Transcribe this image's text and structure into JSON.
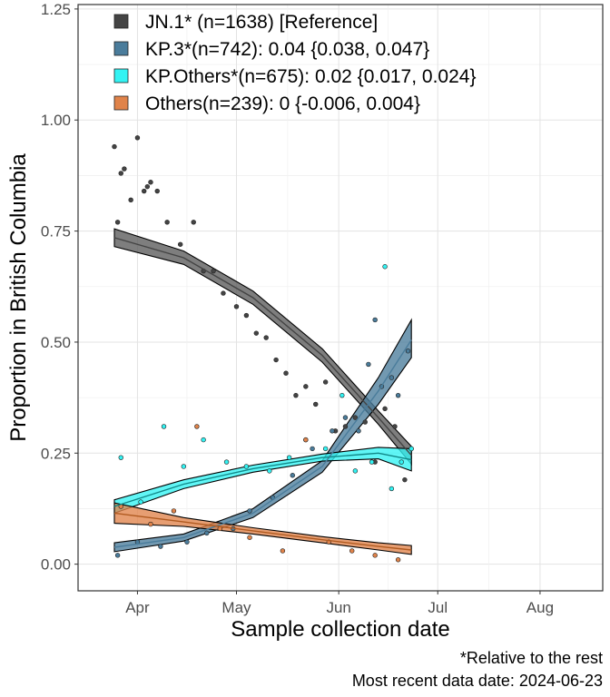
{
  "chart_data": {
    "type": "scatter",
    "xlabel": "Sample collection date",
    "ylabel": "Proportion in British Columbia",
    "x_range": [
      "2024-03-14",
      "2024-08-20"
    ],
    "ylim": [
      -0.06,
      1.26
    ],
    "x_ticks": [
      {
        "date": "2024-04-01",
        "label": "Apr"
      },
      {
        "date": "2024-05-01",
        "label": "May"
      },
      {
        "date": "2024-06-01",
        "label": "Jun"
      },
      {
        "date": "2024-07-01",
        "label": "Jul"
      },
      {
        "date": "2024-08-01",
        "label": "Aug"
      }
    ],
    "y_ticks": [
      {
        "value": 0,
        "label": "0.00"
      },
      {
        "value": 0.25,
        "label": "0.25"
      },
      {
        "value": 0.5,
        "label": "0.50"
      },
      {
        "value": 0.75,
        "label": "0.75"
      },
      {
        "value": 1.0,
        "label": "1.00"
      },
      {
        "value": 1.25,
        "label": "1.25"
      }
    ],
    "grid": true,
    "legend_position": "top-left",
    "legend": [
      {
        "label": "JN.1* (n=1638)  [Reference]",
        "color": "#444444"
      },
      {
        "label": "KP.3*(n=742): 0.04 {0.038, 0.047}",
        "color": "#4a7c9b"
      },
      {
        "label": "KP.Others*(n=675): 0.02 {0.017, 0.024}",
        "color": "#33f3f3"
      },
      {
        "label": "Others(n=239): 0 {-0.006, 0.004}",
        "color": "#e0834a"
      }
    ],
    "fit_series": [
      {
        "color": "#444444",
        "fill": "#5a5a5a",
        "x": [
          "2024-03-25",
          "2024-04-15",
          "2024-05-06",
          "2024-05-27",
          "2024-06-13",
          "2024-06-23"
        ],
        "y": [
          0.735,
          0.69,
          0.6,
          0.47,
          0.33,
          0.245
        ],
        "lower": [
          0.715,
          0.675,
          0.585,
          0.455,
          0.315,
          0.225
        ],
        "upper": [
          0.755,
          0.705,
          0.615,
          0.485,
          0.345,
          0.265
        ]
      },
      {
        "color": "#4a7c9b",
        "fill": "#4a7c9b",
        "x": [
          "2024-03-25",
          "2024-04-15",
          "2024-05-06",
          "2024-05-27",
          "2024-06-13",
          "2024-06-23"
        ],
        "y": [
          0.038,
          0.06,
          0.115,
          0.22,
          0.39,
          0.505
        ],
        "lower": [
          0.028,
          0.052,
          0.105,
          0.207,
          0.36,
          0.465
        ],
        "upper": [
          0.048,
          0.068,
          0.125,
          0.233,
          0.42,
          0.55
        ]
      },
      {
        "color": "#108888",
        "fill": "#33f3f3",
        "x": [
          "2024-03-25",
          "2024-04-15",
          "2024-05-06",
          "2024-05-27",
          "2024-06-13",
          "2024-06-23"
        ],
        "y": [
          0.13,
          0.18,
          0.215,
          0.24,
          0.25,
          0.235
        ],
        "lower": [
          0.115,
          0.17,
          0.207,
          0.232,
          0.237,
          0.21
        ],
        "upper": [
          0.145,
          0.19,
          0.223,
          0.248,
          0.263,
          0.26
        ]
      },
      {
        "color": "#b05a20",
        "fill": "#e0834a",
        "x": [
          "2024-03-25",
          "2024-04-15",
          "2024-05-06",
          "2024-05-27",
          "2024-06-13",
          "2024-06-23"
        ],
        "y": [
          0.115,
          0.095,
          0.075,
          0.055,
          0.04,
          0.032
        ],
        "lower": [
          0.092,
          0.085,
          0.068,
          0.048,
          0.032,
          0.022
        ],
        "upper": [
          0.138,
          0.105,
          0.082,
          0.062,
          0.048,
          0.042
        ]
      }
    ],
    "points": [
      {
        "color": "#444444",
        "x": [
          "2024-03-25",
          "2024-03-26",
          "2024-03-27",
          "2024-03-28",
          "2024-03-30",
          "2024-04-01",
          "2024-04-03",
          "2024-04-04",
          "2024-04-05",
          "2024-04-07",
          "2024-04-10",
          "2024-04-14",
          "2024-04-18",
          "2024-04-21",
          "2024-04-24",
          "2024-04-27",
          "2024-05-01",
          "2024-05-04",
          "2024-05-07",
          "2024-05-10",
          "2024-05-13",
          "2024-05-16",
          "2024-05-19",
          "2024-05-22",
          "2024-05-25",
          "2024-05-28",
          "2024-05-31",
          "2024-06-03",
          "2024-06-06",
          "2024-06-09",
          "2024-06-12",
          "2024-06-15",
          "2024-06-18",
          "2024-06-21",
          "2024-06-23"
        ],
        "y": [
          0.94,
          0.77,
          0.88,
          0.89,
          0.82,
          0.96,
          0.84,
          0.85,
          0.86,
          0.84,
          0.77,
          0.72,
          0.77,
          0.66,
          0.66,
          0.61,
          0.58,
          0.56,
          0.52,
          0.51,
          0.46,
          0.43,
          0.38,
          0.4,
          0.36,
          0.41,
          0.3,
          0.31,
          0.33,
          0.32,
          0.23,
          0.35,
          0.31,
          0.19,
          0.26
        ]
      },
      {
        "color": "#4a7c9b",
        "x": [
          "2024-03-26",
          "2024-04-01",
          "2024-04-08",
          "2024-04-16",
          "2024-04-22",
          "2024-04-30",
          "2024-05-05",
          "2024-05-12",
          "2024-05-18",
          "2024-05-24",
          "2024-05-30",
          "2024-06-03",
          "2024-06-07",
          "2024-06-10",
          "2024-06-12",
          "2024-06-14",
          "2024-06-17",
          "2024-06-19",
          "2024-06-22"
        ],
        "y": [
          0.02,
          0.05,
          0.04,
          0.05,
          0.07,
          0.08,
          0.12,
          0.15,
          0.2,
          0.26,
          0.3,
          0.33,
          0.3,
          0.45,
          0.55,
          0.4,
          0.42,
          0.38,
          0.48
        ]
      },
      {
        "color": "#33f3f3",
        "x": [
          "2024-03-27",
          "2024-04-02",
          "2024-04-09",
          "2024-04-15",
          "2024-04-21",
          "2024-04-28",
          "2024-05-04",
          "2024-05-11",
          "2024-05-17",
          "2024-05-22",
          "2024-05-28",
          "2024-06-02",
          "2024-06-06",
          "2024-06-11",
          "2024-06-15",
          "2024-06-17",
          "2024-06-20",
          "2024-06-23"
        ],
        "y": [
          0.24,
          0.14,
          0.31,
          0.22,
          0.28,
          0.23,
          0.22,
          0.21,
          0.24,
          0.28,
          0.26,
          0.38,
          0.21,
          0.23,
          0.67,
          0.17,
          0.23,
          0.26
        ]
      },
      {
        "color": "#e0834a",
        "x": [
          "2024-03-27",
          "2024-04-05",
          "2024-04-12",
          "2024-04-19",
          "2024-04-26",
          "2024-05-05",
          "2024-05-15",
          "2024-05-22",
          "2024-05-29",
          "2024-06-05",
          "2024-06-12",
          "2024-06-19"
        ],
        "y": [
          0.13,
          0.09,
          0.12,
          0.31,
          0.08,
          0.06,
          0.03,
          0.28,
          0.05,
          0.03,
          0.02,
          0.01
        ]
      }
    ]
  },
  "caption": {
    "line1": "*Relative to the rest",
    "line2": "Most recent data date: 2024-06-23"
  }
}
